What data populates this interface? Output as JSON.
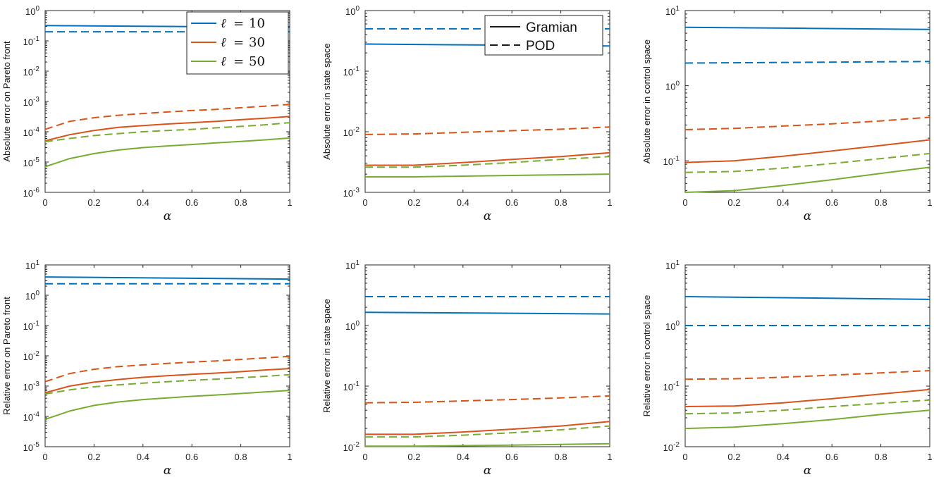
{
  "colors": {
    "blue": "#0072BD",
    "red": "#D95319",
    "green": "#77AC30"
  },
  "chart_data": [
    {
      "type": "line",
      "yscale": "log",
      "ylabel": "Absolute error on Pareto front",
      "xlabel": "α",
      "xlim": [
        0,
        1
      ],
      "ylim_exp": [
        -6,
        0
      ],
      "xticks": [
        "0",
        "0.2",
        "0.4",
        "0.6",
        "0.8",
        "1"
      ],
      "series": [
        {
          "name": "ℓ = 10 Gramian",
          "color": "blue",
          "dash": false,
          "x": [
            0,
            0.5,
            1
          ],
          "y": [
            0.32,
            0.3,
            0.28
          ]
        },
        {
          "name": "ℓ = 10 POD",
          "color": "blue",
          "dash": true,
          "x": [
            0,
            0.5,
            1
          ],
          "y": [
            0.2,
            0.2,
            0.2
          ]
        },
        {
          "name": "ℓ = 30 Gramian",
          "color": "red",
          "dash": false,
          "x": [
            0,
            0.1,
            0.2,
            0.3,
            0.4,
            0.5,
            0.6,
            0.7,
            0.8,
            0.9,
            1
          ],
          "y": [
            5e-05,
            8e-05,
            0.00011,
            0.00014,
            0.00016,
            0.00018,
            0.0002,
            0.00022,
            0.00025,
            0.00028,
            0.00032
          ]
        },
        {
          "name": "ℓ = 30 POD",
          "color": "red",
          "dash": true,
          "x": [
            0,
            0.1,
            0.2,
            0.3,
            0.4,
            0.5,
            0.6,
            0.7,
            0.8,
            0.9,
            1
          ],
          "y": [
            0.00012,
            0.00022,
            0.00029,
            0.00035,
            0.0004,
            0.00045,
            0.0005,
            0.00055,
            0.00062,
            0.0007,
            0.0008
          ]
        },
        {
          "name": "ℓ = 50 Gramian",
          "color": "green",
          "dash": false,
          "x": [
            0,
            0.1,
            0.2,
            0.3,
            0.4,
            0.5,
            0.6,
            0.7,
            0.8,
            0.9,
            1
          ],
          "y": [
            7e-06,
            1.3e-05,
            1.9e-05,
            2.5e-05,
            3e-05,
            3.4e-05,
            3.8e-05,
            4.3e-05,
            4.8e-05,
            5.4e-05,
            6.2e-05
          ]
        },
        {
          "name": "ℓ = 50 POD",
          "color": "green",
          "dash": true,
          "x": [
            0,
            0.1,
            0.2,
            0.3,
            0.4,
            0.5,
            0.6,
            0.7,
            0.8,
            0.9,
            1
          ],
          "y": [
            4.7e-05,
            6e-05,
            7.5e-05,
            8.7e-05,
            0.0001,
            0.00011,
            0.00012,
            0.000135,
            0.00015,
            0.00017,
            0.0002
          ]
        }
      ]
    },
    {
      "type": "line",
      "yscale": "log",
      "ylabel": "Absolute error in state space",
      "xlabel": "α",
      "xlim": [
        0,
        1
      ],
      "ylim_exp": [
        -3,
        0
      ],
      "xticks": [
        "0",
        "0.2",
        "0.4",
        "0.6",
        "0.8",
        "1"
      ],
      "series": [
        {
          "name": "ℓ = 10 Gramian",
          "color": "blue",
          "dash": false,
          "x": [
            0,
            0.5,
            1
          ],
          "y": [
            0.28,
            0.27,
            0.26
          ]
        },
        {
          "name": "ℓ = 10 POD",
          "color": "blue",
          "dash": true,
          "x": [
            0,
            0.5,
            1
          ],
          "y": [
            0.5,
            0.5,
            0.5
          ]
        },
        {
          "name": "ℓ = 30 Gramian",
          "color": "red",
          "dash": false,
          "x": [
            0,
            0.2,
            0.4,
            0.6,
            0.8,
            1
          ],
          "y": [
            0.0028,
            0.0028,
            0.0031,
            0.0035,
            0.0039,
            0.0045
          ]
        },
        {
          "name": "ℓ = 30 POD",
          "color": "red",
          "dash": true,
          "x": [
            0,
            0.2,
            0.4,
            0.6,
            0.8,
            1
          ],
          "y": [
            0.009,
            0.0092,
            0.0098,
            0.0104,
            0.011,
            0.012
          ]
        },
        {
          "name": "ℓ = 50 Gramian",
          "color": "green",
          "dash": false,
          "x": [
            0,
            0.2,
            0.4,
            0.6,
            0.8,
            1
          ],
          "y": [
            0.0018,
            0.0018,
            0.00185,
            0.0019,
            0.00195,
            0.002
          ]
        },
        {
          "name": "ℓ = 50 POD",
          "color": "green",
          "dash": true,
          "x": [
            0,
            0.2,
            0.4,
            0.6,
            0.8,
            1
          ],
          "y": [
            0.0026,
            0.0026,
            0.0028,
            0.0031,
            0.0035,
            0.0039
          ]
        }
      ]
    },
    {
      "type": "line",
      "yscale": "log",
      "ylabel": "Absolute error in control space",
      "xlabel": "α",
      "xlim": [
        0,
        1
      ],
      "ylim_exp": [
        -1.42,
        1
      ],
      "yticks_exp": [
        -1,
        0,
        1
      ],
      "xticks": [
        "0",
        "0.2",
        "0.4",
        "0.6",
        "0.8",
        "1"
      ],
      "series": [
        {
          "name": "ℓ = 10 Gramian",
          "color": "blue",
          "dash": false,
          "x": [
            0,
            0.5,
            1
          ],
          "y": [
            6,
            5.8,
            5.6
          ]
        },
        {
          "name": "ℓ = 10 POD",
          "color": "blue",
          "dash": true,
          "x": [
            0,
            0.5,
            1
          ],
          "y": [
            2,
            2.05,
            2.1
          ]
        },
        {
          "name": "ℓ = 30 Gramian",
          "color": "red",
          "dash": false,
          "x": [
            0,
            0.2,
            0.4,
            0.6,
            0.8,
            1
          ],
          "y": [
            0.095,
            0.1,
            0.115,
            0.135,
            0.16,
            0.19
          ]
        },
        {
          "name": "ℓ = 30 POD",
          "color": "red",
          "dash": true,
          "x": [
            0,
            0.2,
            0.4,
            0.6,
            0.8,
            1
          ],
          "y": [
            0.26,
            0.27,
            0.29,
            0.31,
            0.34,
            0.38
          ]
        },
        {
          "name": "ℓ = 50 Gramian",
          "color": "green",
          "dash": false,
          "x": [
            0,
            0.2,
            0.4,
            0.6,
            0.8,
            1
          ],
          "y": [
            0.038,
            0.04,
            0.047,
            0.056,
            0.068,
            0.082
          ]
        },
        {
          "name": "ℓ = 50 POD",
          "color": "green",
          "dash": true,
          "x": [
            0,
            0.2,
            0.4,
            0.6,
            0.8,
            1
          ],
          "y": [
            0.07,
            0.072,
            0.08,
            0.092,
            0.107,
            0.125
          ]
        }
      ]
    },
    {
      "type": "line",
      "yscale": "log",
      "ylabel": "Relative error on Pareto front",
      "xlabel": "α",
      "xlim": [
        0,
        1
      ],
      "ylim_exp": [
        -5,
        1
      ],
      "xticks": [
        "0",
        "0.2",
        "0.4",
        "0.6",
        "0.8",
        "1"
      ],
      "series": [
        {
          "name": "ℓ = 10 Gramian",
          "color": "blue",
          "dash": false,
          "x": [
            0,
            0.5,
            1
          ],
          "y": [
            4,
            3.7,
            3.4
          ]
        },
        {
          "name": "ℓ = 10 POD",
          "color": "blue",
          "dash": true,
          "x": [
            0,
            0.5,
            1
          ],
          "y": [
            2.4,
            2.4,
            2.4
          ]
        },
        {
          "name": "ℓ = 30 Gramian",
          "color": "red",
          "dash": false,
          "x": [
            0,
            0.1,
            0.2,
            0.3,
            0.4,
            0.5,
            0.6,
            0.7,
            0.8,
            0.9,
            1
          ],
          "y": [
            0.0006,
            0.001,
            0.00135,
            0.00165,
            0.00195,
            0.0022,
            0.00245,
            0.0027,
            0.003,
            0.0034,
            0.0038
          ]
        },
        {
          "name": "ℓ = 30 POD",
          "color": "red",
          "dash": true,
          "x": [
            0,
            0.1,
            0.2,
            0.3,
            0.4,
            0.5,
            0.6,
            0.7,
            0.8,
            0.9,
            1
          ],
          "y": [
            0.0014,
            0.0026,
            0.0036,
            0.0044,
            0.005,
            0.0056,
            0.0062,
            0.0068,
            0.0076,
            0.0085,
            0.0096
          ]
        },
        {
          "name": "ℓ = 50 Gramian",
          "color": "green",
          "dash": false,
          "x": [
            0,
            0.1,
            0.2,
            0.3,
            0.4,
            0.5,
            0.6,
            0.7,
            0.8,
            0.9,
            1
          ],
          "y": [
            8e-05,
            0.00015,
            0.00023,
            0.0003,
            0.00036,
            0.00041,
            0.00046,
            0.00051,
            0.00057,
            0.00064,
            0.00072
          ]
        },
        {
          "name": "ℓ = 50 POD",
          "color": "green",
          "dash": true,
          "x": [
            0,
            0.1,
            0.2,
            0.3,
            0.4,
            0.5,
            0.6,
            0.7,
            0.8,
            0.9,
            1
          ],
          "y": [
            0.00055,
            0.00075,
            0.00095,
            0.0011,
            0.00125,
            0.0014,
            0.00155,
            0.0017,
            0.0019,
            0.0021,
            0.0024
          ]
        }
      ]
    },
    {
      "type": "line",
      "yscale": "log",
      "ylabel": "Relative error in state space",
      "xlabel": "α",
      "xlim": [
        0,
        1
      ],
      "ylim_exp": [
        -2,
        1
      ],
      "xticks": [
        "0",
        "0.2",
        "0.4",
        "0.6",
        "0.8",
        "1"
      ],
      "series": [
        {
          "name": "ℓ = 10 Gramian",
          "color": "blue",
          "dash": false,
          "x": [
            0,
            0.5,
            1
          ],
          "y": [
            1.65,
            1.6,
            1.55
          ]
        },
        {
          "name": "ℓ = 10 POD",
          "color": "blue",
          "dash": true,
          "x": [
            0,
            0.5,
            1
          ],
          "y": [
            3,
            3,
            3
          ]
        },
        {
          "name": "ℓ = 30 Gramian",
          "color": "red",
          "dash": false,
          "x": [
            0,
            0.2,
            0.4,
            0.6,
            0.8,
            1
          ],
          "y": [
            0.016,
            0.016,
            0.0175,
            0.0195,
            0.022,
            0.026
          ]
        },
        {
          "name": "ℓ = 30 POD",
          "color": "red",
          "dash": true,
          "x": [
            0,
            0.2,
            0.4,
            0.6,
            0.8,
            1
          ],
          "y": [
            0.053,
            0.054,
            0.057,
            0.06,
            0.064,
            0.069
          ]
        },
        {
          "name": "ℓ = 50 Gramian",
          "color": "green",
          "dash": false,
          "x": [
            0,
            0.2,
            0.4,
            0.6,
            0.8,
            1
          ],
          "y": [
            0.0102,
            0.0102,
            0.0104,
            0.0106,
            0.0109,
            0.0112
          ]
        },
        {
          "name": "ℓ = 50 POD",
          "color": "green",
          "dash": true,
          "x": [
            0,
            0.2,
            0.4,
            0.6,
            0.8,
            1
          ],
          "y": [
            0.0145,
            0.0145,
            0.0155,
            0.017,
            0.019,
            0.022
          ]
        }
      ]
    },
    {
      "type": "line",
      "yscale": "log",
      "ylabel": "Relative error in control space",
      "xlabel": "α",
      "xlim": [
        0,
        1
      ],
      "ylim_exp": [
        -2,
        1
      ],
      "xticks": [
        "0",
        "0.2",
        "0.4",
        "0.6",
        "0.8",
        "1"
      ],
      "series": [
        {
          "name": "ℓ = 10 Gramian",
          "color": "blue",
          "dash": false,
          "x": [
            0,
            0.5,
            1
          ],
          "y": [
            3,
            2.85,
            2.7
          ]
        },
        {
          "name": "ℓ = 10 POD",
          "color": "blue",
          "dash": true,
          "x": [
            0,
            0.5,
            1
          ],
          "y": [
            1,
            1,
            1
          ]
        },
        {
          "name": "ℓ = 30 Gramian",
          "color": "red",
          "dash": false,
          "x": [
            0,
            0.2,
            0.4,
            0.6,
            0.8,
            1
          ],
          "y": [
            0.046,
            0.047,
            0.053,
            0.062,
            0.074,
            0.088
          ]
        },
        {
          "name": "ℓ = 30 POD",
          "color": "red",
          "dash": true,
          "x": [
            0,
            0.2,
            0.4,
            0.6,
            0.8,
            1
          ],
          "y": [
            0.13,
            0.132,
            0.14,
            0.152,
            0.165,
            0.18
          ]
        },
        {
          "name": "ℓ = 50 Gramian",
          "color": "green",
          "dash": false,
          "x": [
            0,
            0.2,
            0.4,
            0.6,
            0.8,
            1
          ],
          "y": [
            0.02,
            0.021,
            0.024,
            0.028,
            0.034,
            0.04
          ]
        },
        {
          "name": "ℓ = 50 POD",
          "color": "green",
          "dash": true,
          "x": [
            0,
            0.2,
            0.4,
            0.6,
            0.8,
            1
          ],
          "y": [
            0.035,
            0.036,
            0.04,
            0.046,
            0.052,
            0.059
          ]
        }
      ]
    }
  ],
  "legends": {
    "ell": {
      "items": [
        {
          "var": "ℓ",
          "eq": "=",
          "num": "10",
          "color": "blue"
        },
        {
          "var": "ℓ",
          "eq": "=",
          "num": "30",
          "color": "red"
        },
        {
          "var": "ℓ",
          "eq": "=",
          "num": "50",
          "color": "green"
        }
      ]
    },
    "method": {
      "items": [
        {
          "label": "Gramian",
          "dash": false
        },
        {
          "label": "POD",
          "dash": true
        }
      ]
    }
  }
}
